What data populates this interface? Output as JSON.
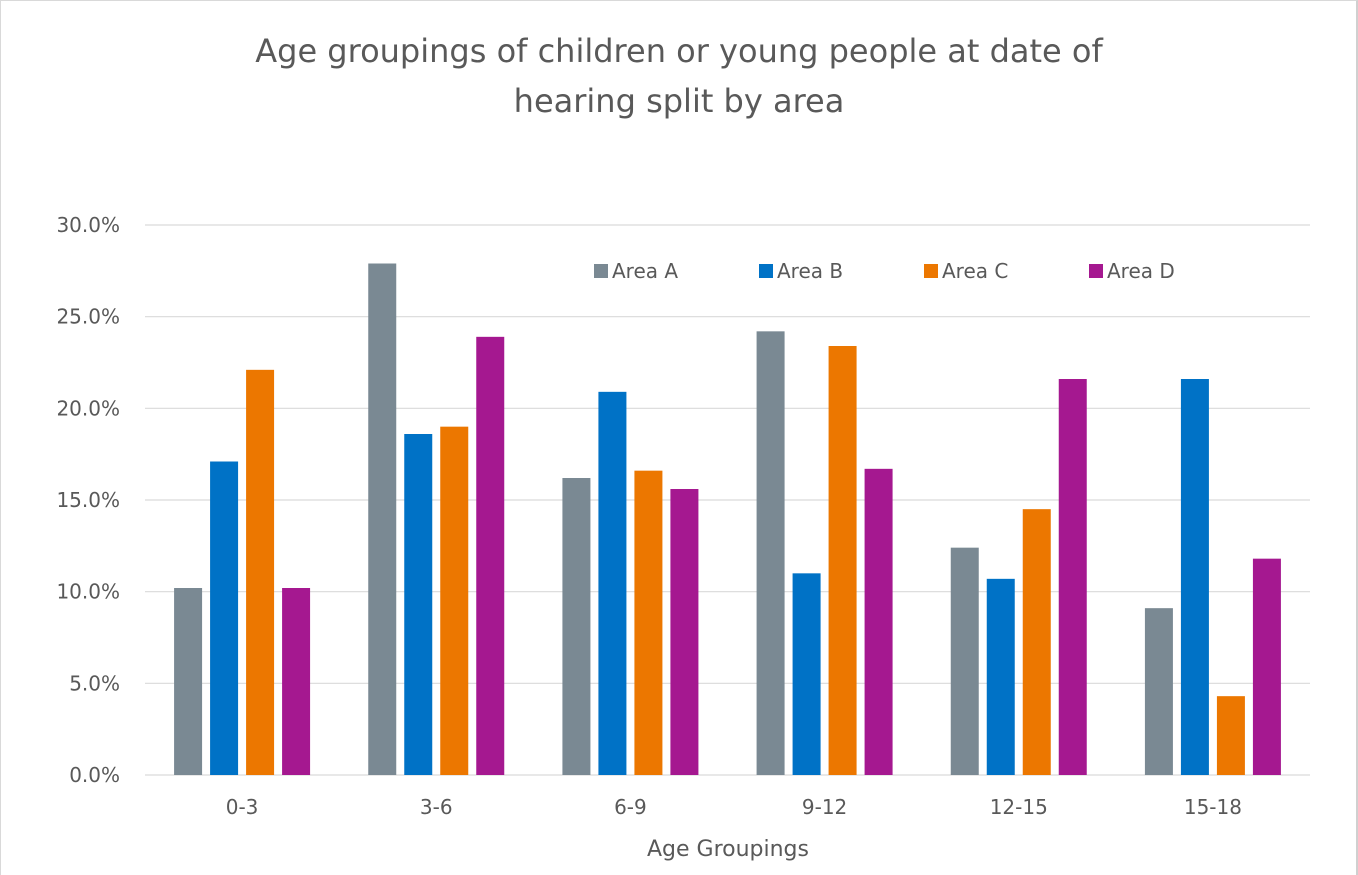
{
  "chart_data": {
    "type": "bar",
    "title": "Age groupings of children or young people at date of hearing split by area",
    "title_lines": [
      "Age groupings of children or young people at date of",
      "hearing split by area"
    ],
    "xlabel": "Age Groupings",
    "ylabel": "",
    "categories": [
      "0-3",
      "3-6",
      "6-9",
      "9-12",
      "12-15",
      "15-18"
    ],
    "series": [
      {
        "name": "Area A",
        "color": "#7a8993",
        "values": [
          10.2,
          27.9,
          16.2,
          24.2,
          12.4,
          9.1
        ]
      },
      {
        "name": "Area B",
        "color": "#0072c6",
        "values": [
          17.1,
          18.6,
          20.9,
          11.0,
          10.7,
          21.6
        ]
      },
      {
        "name": "Area C",
        "color": "#ec7700",
        "values": [
          22.1,
          19.0,
          16.6,
          23.4,
          14.5,
          4.3
        ]
      },
      {
        "name": "Area D",
        "color": "#a51890",
        "values": [
          10.2,
          23.9,
          15.6,
          16.7,
          21.6,
          11.8
        ]
      }
    ],
    "ylim": [
      0,
      30
    ],
    "yticks": [
      0,
      5,
      10,
      15,
      20,
      25,
      30
    ],
    "ytick_labels": [
      "0.0%",
      "5.0%",
      "10.0%",
      "15.0%",
      "20.0%",
      "25.0%",
      "30.0%"
    ],
    "grid": true,
    "legend_position": "top-right inside plot"
  }
}
